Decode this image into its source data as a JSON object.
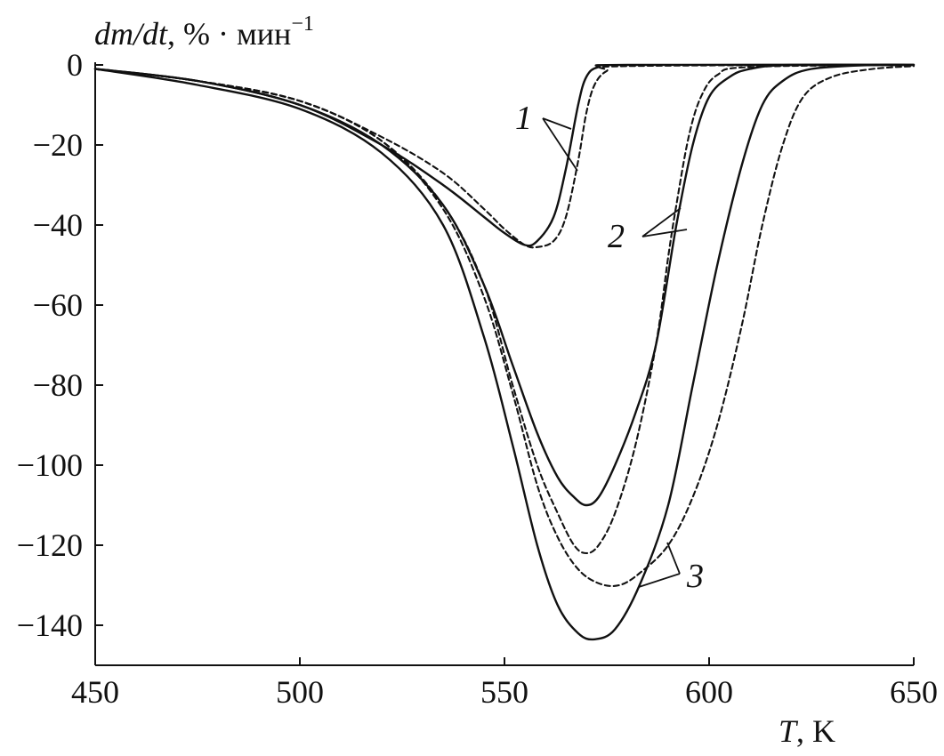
{
  "chart_data": {
    "type": "line",
    "ylabel": "dm/dt, % · мин",
    "ylabel_parts": {
      "main": "dm/dt",
      "rest": ", % · мин",
      "exp": "−1"
    },
    "xlabel": "T, K",
    "xlabel_parts": {
      "main": "T",
      "rest": ", K"
    },
    "xlim": [
      450,
      650
    ],
    "ylim": [
      -150,
      0
    ],
    "xticks": [
      450,
      500,
      550,
      600,
      650
    ],
    "yticks": [
      0,
      -20,
      -40,
      -60,
      -80,
      -100,
      -120,
      -140
    ],
    "xtick_labels": [
      "450",
      "500",
      "550",
      "600",
      "650"
    ],
    "ytick_labels": [
      "0",
      "−20",
      "−40",
      "−60",
      "−80",
      "−100",
      "−120",
      "−140"
    ],
    "grid": false,
    "series": [
      {
        "label": "1",
        "style": "solid",
        "points": [
          [
            450,
            -1
          ],
          [
            475,
            -4
          ],
          [
            500,
            -10
          ],
          [
            520,
            -20
          ],
          [
            535,
            -30
          ],
          [
            545,
            -38
          ],
          [
            550,
            -42
          ],
          [
            555,
            -45
          ],
          [
            558,
            -44
          ],
          [
            562,
            -38
          ],
          [
            565,
            -26
          ],
          [
            568,
            -10
          ],
          [
            570,
            -3
          ],
          [
            573,
            -0.5
          ],
          [
            580,
            0
          ],
          [
            650,
            0
          ]
        ]
      },
      {
        "label": "1",
        "style": "dashed",
        "points": [
          [
            450,
            -1
          ],
          [
            475,
            -4
          ],
          [
            500,
            -9
          ],
          [
            520,
            -18
          ],
          [
            535,
            -27
          ],
          [
            545,
            -36
          ],
          [
            550,
            -41
          ],
          [
            555,
            -45
          ],
          [
            558,
            -45.5
          ],
          [
            562,
            -44
          ],
          [
            565,
            -38
          ],
          [
            568,
            -24
          ],
          [
            570,
            -12
          ],
          [
            572,
            -5
          ],
          [
            575,
            -1.5
          ],
          [
            580,
            -0.3
          ],
          [
            650,
            0
          ]
        ]
      },
      {
        "label": "2",
        "style": "solid",
        "points": [
          [
            450,
            -1
          ],
          [
            475,
            -4
          ],
          [
            500,
            -10
          ],
          [
            520,
            -20
          ],
          [
            535,
            -35
          ],
          [
            545,
            -55
          ],
          [
            552,
            -75
          ],
          [
            558,
            -92
          ],
          [
            563,
            -103
          ],
          [
            567,
            -108
          ],
          [
            570,
            -110
          ],
          [
            573,
            -108
          ],
          [
            577,
            -100
          ],
          [
            582,
            -87
          ],
          [
            587,
            -70
          ],
          [
            592,
            -40
          ],
          [
            596,
            -20
          ],
          [
            600,
            -8
          ],
          [
            605,
            -3
          ],
          [
            610,
            -1
          ],
          [
            620,
            0
          ],
          [
            650,
            0
          ]
        ]
      },
      {
        "label": "2",
        "style": "dashed",
        "points": [
          [
            450,
            -1
          ],
          [
            475,
            -4
          ],
          [
            500,
            -9
          ],
          [
            520,
            -19
          ],
          [
            535,
            -35
          ],
          [
            545,
            -55
          ],
          [
            552,
            -80
          ],
          [
            558,
            -100
          ],
          [
            563,
            -112
          ],
          [
            567,
            -120
          ],
          [
            570,
            -122
          ],
          [
            573,
            -120
          ],
          [
            577,
            -112
          ],
          [
            582,
            -95
          ],
          [
            587,
            -70
          ],
          [
            590,
            -48
          ],
          [
            592,
            -35
          ],
          [
            595,
            -18
          ],
          [
            598,
            -8
          ],
          [
            602,
            -2.5
          ],
          [
            610,
            -0.5
          ],
          [
            650,
            0
          ]
        ]
      },
      {
        "label": "3",
        "style": "solid",
        "points": [
          [
            450,
            -1
          ],
          [
            475,
            -5
          ],
          [
            500,
            -11
          ],
          [
            520,
            -22
          ],
          [
            535,
            -40
          ],
          [
            545,
            -68
          ],
          [
            552,
            -95
          ],
          [
            558,
            -120
          ],
          [
            563,
            -135
          ],
          [
            568,
            -142
          ],
          [
            572,
            -143.5
          ],
          [
            577,
            -141
          ],
          [
            583,
            -130
          ],
          [
            590,
            -110
          ],
          [
            596,
            -80
          ],
          [
            602,
            -50
          ],
          [
            608,
            -25
          ],
          [
            613,
            -10
          ],
          [
            618,
            -4
          ],
          [
            625,
            -1
          ],
          [
            640,
            0
          ],
          [
            650,
            0
          ]
        ]
      },
      {
        "label": "3",
        "style": "dashed",
        "points": [
          [
            450,
            -1
          ],
          [
            475,
            -4
          ],
          [
            500,
            -9
          ],
          [
            520,
            -19
          ],
          [
            535,
            -36
          ],
          [
            545,
            -58
          ],
          [
            552,
            -82
          ],
          [
            558,
            -105
          ],
          [
            563,
            -118
          ],
          [
            568,
            -126
          ],
          [
            573,
            -129.5
          ],
          [
            578,
            -130
          ],
          [
            583,
            -127
          ],
          [
            590,
            -120
          ],
          [
            596,
            -108
          ],
          [
            602,
            -90
          ],
          [
            608,
            -65
          ],
          [
            613,
            -40
          ],
          [
            618,
            -20
          ],
          [
            623,
            -8
          ],
          [
            630,
            -3
          ],
          [
            640,
            -1
          ],
          [
            650,
            -0.3
          ]
        ]
      }
    ],
    "annotations": [
      {
        "text": "1",
        "series": [
          0,
          1
        ]
      },
      {
        "text": "2",
        "series": [
          2,
          3
        ]
      },
      {
        "text": "3",
        "series": [
          4,
          5
        ]
      }
    ]
  }
}
